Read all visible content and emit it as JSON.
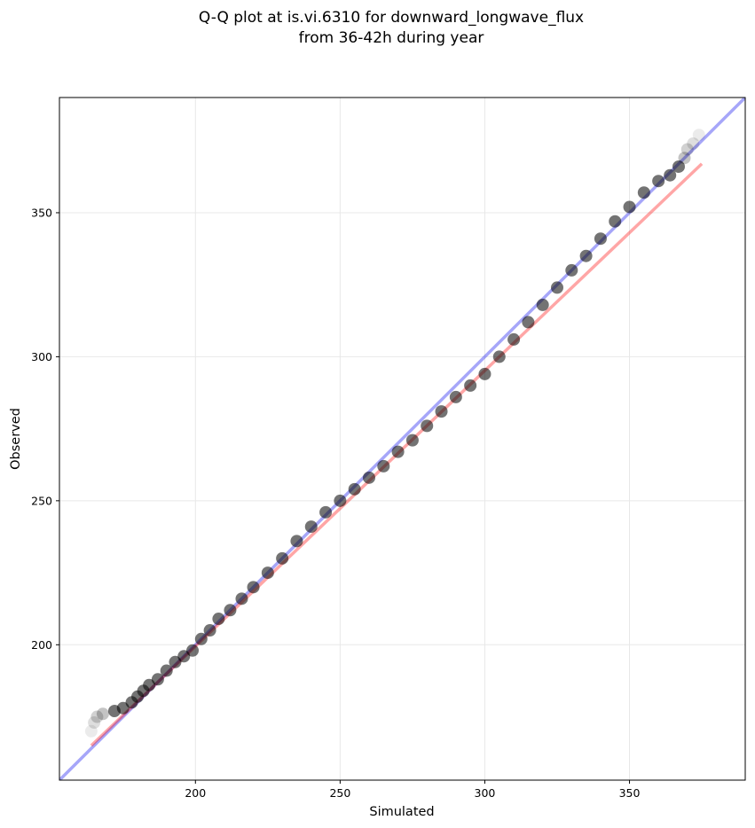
{
  "chart_data": {
    "type": "scatter",
    "title_line1": "Q-Q plot at is.vi.6310 for downward_longwave_flux",
    "title_line2": "from 36-42h during year",
    "xlabel": "Simulated",
    "ylabel": "Observed",
    "xlim": [
      153,
      390
    ],
    "ylim": [
      153,
      390
    ],
    "xticks": [
      200,
      250,
      300,
      350
    ],
    "yticks": [
      200,
      250,
      300,
      350
    ],
    "grid": true,
    "quantile_points": [
      [
        164,
        170
      ],
      [
        165,
        173
      ],
      [
        166,
        175
      ],
      [
        168,
        176
      ],
      [
        172,
        177
      ],
      [
        175,
        178
      ],
      [
        178,
        180
      ],
      [
        180,
        182
      ],
      [
        182,
        184
      ],
      [
        184,
        186
      ],
      [
        187,
        188
      ],
      [
        190,
        191
      ],
      [
        193,
        194
      ],
      [
        196,
        196
      ],
      [
        199,
        198
      ],
      [
        202,
        202
      ],
      [
        205,
        205
      ],
      [
        208,
        209
      ],
      [
        212,
        212
      ],
      [
        216,
        216
      ],
      [
        220,
        220
      ],
      [
        225,
        225
      ],
      [
        230,
        230
      ],
      [
        235,
        236
      ],
      [
        240,
        241
      ],
      [
        245,
        246
      ],
      [
        250,
        250
      ],
      [
        255,
        254
      ],
      [
        260,
        258
      ],
      [
        265,
        262
      ],
      [
        270,
        267
      ],
      [
        275,
        271
      ],
      [
        280,
        276
      ],
      [
        285,
        281
      ],
      [
        290,
        286
      ],
      [
        295,
        290
      ],
      [
        300,
        294
      ],
      [
        305,
        300
      ],
      [
        310,
        306
      ],
      [
        315,
        312
      ],
      [
        320,
        318
      ],
      [
        325,
        324
      ],
      [
        330,
        330
      ],
      [
        335,
        335
      ],
      [
        340,
        341
      ],
      [
        345,
        347
      ],
      [
        350,
        352
      ],
      [
        355,
        357
      ],
      [
        360,
        361
      ],
      [
        364,
        363
      ],
      [
        367,
        366
      ],
      [
        369,
        369
      ],
      [
        370,
        372
      ],
      [
        372,
        374
      ],
      [
        374,
        377
      ]
    ],
    "reference_line": {
      "from": [
        153,
        153
      ],
      "to": [
        390,
        390
      ],
      "color": "#0000ee"
    },
    "fit_line": {
      "from": [
        164,
        165
      ],
      "to": [
        375,
        367
      ],
      "color": "#ff0000"
    },
    "point_color": "#000000"
  }
}
